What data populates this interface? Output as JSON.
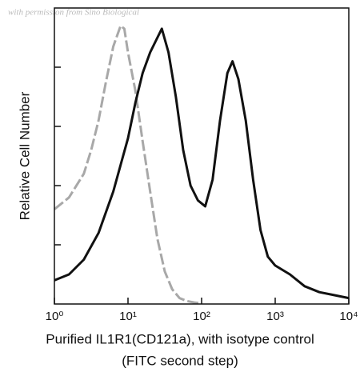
{
  "chart_data": {
    "type": "line",
    "watermark": "with permission from Sino Biological",
    "xlabel": [
      "Purified IL1R1(CD121a), with isotype control",
      "(FITC second step)"
    ],
    "ylabel": "Relative Cell Number",
    "xscale": "log",
    "xlim": [
      1,
      10000
    ],
    "xticks": [
      {
        "value": 1,
        "label": "10⁰"
      },
      {
        "value": 10,
        "label": "10¹"
      },
      {
        "value": 100,
        "label": "10²"
      },
      {
        "value": 1000,
        "label": "10³"
      },
      {
        "value": 10000,
        "label": "10⁴"
      }
    ],
    "ylim": [
      0,
      100
    ],
    "yticks": [
      {
        "value": 20,
        "label": null
      },
      {
        "value": 40,
        "label": null
      },
      {
        "value": 60,
        "label": null
      },
      {
        "value": 80,
        "label": null
      }
    ],
    "series": [
      {
        "color": "#a8a8a8",
        "dashed": true,
        "x": [
          1,
          1.58,
          2.51,
          3.16,
          3.98,
          5.01,
          6.31,
          7.94,
          8.91,
          10,
          12.6,
          15.8,
          20,
          25.1,
          31.6,
          39.8,
          50.1,
          63.1,
          79.4,
          100
        ],
        "values": [
          32,
          36,
          44,
          52,
          62,
          75,
          87,
          94,
          93,
          85,
          72,
          55,
          38,
          22,
          11,
          5,
          2,
          1,
          0.5,
          0.2
        ]
      },
      {
        "color": "#111111",
        "dashed": false,
        "x": [
          1,
          1.58,
          2.51,
          3.98,
          6.31,
          7.94,
          10,
          12.6,
          15.8,
          20,
          25.1,
          28.8,
          35.5,
          44.7,
          56.2,
          70.8,
          89.1,
          112,
          141,
          178,
          224,
          263,
          316,
          398,
          501,
          631,
          794,
          1000,
          1585,
          2512,
          3981,
          6310,
          10000
        ],
        "values": [
          8,
          10,
          15,
          24,
          38,
          47,
          56,
          68,
          78,
          85,
          90,
          93,
          85,
          70,
          52,
          40,
          35,
          33,
          42,
          62,
          78,
          82,
          76,
          62,
          42,
          25,
          16,
          13,
          10,
          6,
          4,
          3,
          2
        ]
      }
    ]
  }
}
